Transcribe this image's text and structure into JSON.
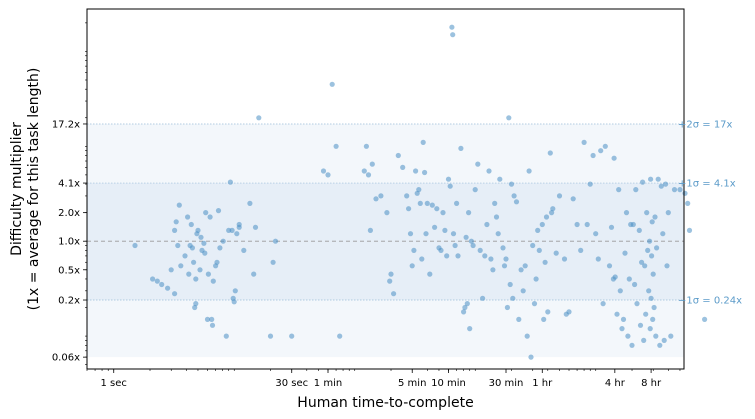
{
  "chart_data": {
    "type": "scatter",
    "title": "",
    "xlabel": "Human time-to-complete",
    "ylabel_line1": "Difficulty multiplier",
    "ylabel_line2": "(1x = average for this task length)",
    "x_scale": "log",
    "y_scale": "log",
    "xlim_seconds": [
      0.6,
      54000
    ],
    "ylim": [
      0.045,
      280
    ],
    "x_ticks": [
      {
        "label": "1 sec",
        "seconds": 1
      },
      {
        "label": "30 sec",
        "seconds": 30
      },
      {
        "label": "1 min",
        "seconds": 60
      },
      {
        "label": "5 min",
        "seconds": 300
      },
      {
        "label": "10 min",
        "seconds": 600
      },
      {
        "label": "30 min",
        "seconds": 1800
      },
      {
        "label": "1 hr",
        "seconds": 3600
      },
      {
        "label": "4 hr",
        "seconds": 14400
      },
      {
        "label": "8 hr",
        "seconds": 28800
      }
    ],
    "y_ticks": [
      {
        "label": "0.06x",
        "value": 0.06
      },
      {
        "label": "0.2x",
        "value": 0.24
      },
      {
        "label": "0.5x",
        "value": 0.5
      },
      {
        "label": "1.0x",
        "value": 1.0
      },
      {
        "label": "2.0x",
        "value": 2.0
      },
      {
        "label": "4.1x",
        "value": 4.1
      },
      {
        "label": "17.2x",
        "value": 17.2
      }
    ],
    "bands": [
      {
        "from": 0.06,
        "to": 17.2,
        "color": "#f3f7fb"
      },
      {
        "from": 0.24,
        "to": 4.1,
        "color": "#e6eef7"
      }
    ],
    "reference_lines": [
      {
        "value": 17.2,
        "label": "+2σ = 17x"
      },
      {
        "value": 4.1,
        "label": "+1σ = 4.1x"
      },
      {
        "value": 1.0,
        "label": ""
      },
      {
        "value": 0.24,
        "label": "−1σ = 0.24x"
      }
    ],
    "point_color": "#4a90c4",
    "points": [
      [
        1.5,
        0.9
      ],
      [
        2.1,
        0.4
      ],
      [
        2.3,
        0.38
      ],
      [
        2.5,
        0.35
      ],
      [
        2.8,
        0.32
      ],
      [
        3.0,
        0.5
      ],
      [
        3.2,
        0.28
      ],
      [
        3.2,
        1.3
      ],
      [
        3.3,
        1.6
      ],
      [
        3.4,
        0.9
      ],
      [
        3.5,
        2.4
      ],
      [
        3.6,
        0.55
      ],
      [
        3.9,
        0.7
      ],
      [
        4.1,
        1.8
      ],
      [
        4.2,
        0.45
      ],
      [
        4.3,
        0.9
      ],
      [
        4.4,
        1.5
      ],
      [
        4.5,
        0.85
      ],
      [
        4.6,
        0.6
      ],
      [
        4.7,
        0.2
      ],
      [
        4.8,
        0.22
      ],
      [
        4.8,
        0.4
      ],
      [
        4.9,
        1.2
      ],
      [
        5.0,
        1.3
      ],
      [
        5.2,
        0.5
      ],
      [
        5.3,
        1.1
      ],
      [
        5.4,
        0.8
      ],
      [
        5.6,
        0.95
      ],
      [
        5.7,
        0.75
      ],
      [
        5.8,
        2.0
      ],
      [
        6.0,
        0.15
      ],
      [
        6.1,
        0.45
      ],
      [
        6.3,
        1.8
      ],
      [
        6.5,
        0.15
      ],
      [
        6.6,
        0.13
      ],
      [
        6.7,
        0.38
      ],
      [
        7.0,
        0.55
      ],
      [
        7.2,
        0.6
      ],
      [
        7.4,
        2.1
      ],
      [
        7.6,
        0.85
      ],
      [
        8.1,
        1.0
      ],
      [
        8.6,
        0.1
      ],
      [
        9.0,
        1.3
      ],
      [
        9.3,
        4.2
      ],
      [
        9.6,
        1.3
      ],
      [
        9.8,
        0.25
      ],
      [
        10.0,
        0.23
      ],
      [
        10.2,
        0.3
      ],
      [
        10.5,
        1.2
      ],
      [
        11.0,
        1.5
      ],
      [
        11.0,
        1.4
      ],
      [
        12.0,
        0.8
      ],
      [
        13.5,
        2.5
      ],
      [
        14.5,
        0.45
      ],
      [
        15.0,
        1.4
      ],
      [
        16.0,
        20.0
      ],
      [
        20.0,
        0.1
      ],
      [
        21.0,
        0.6
      ],
      [
        22.0,
        1.0
      ],
      [
        30.0,
        0.1
      ],
      [
        55.0,
        5.5
      ],
      [
        60.0,
        5.0
      ],
      [
        65.0,
        45.0
      ],
      [
        70.0,
        10.0
      ],
      [
        75.0,
        0.1
      ],
      [
        120.0,
        5.5
      ],
      [
        125.0,
        10.0
      ],
      [
        130.0,
        5.0
      ],
      [
        135.0,
        1.3
      ],
      [
        140.0,
        6.5
      ],
      [
        150.0,
        2.8
      ],
      [
        165.0,
        3.0
      ],
      [
        185.0,
        2.0
      ],
      [
        195.0,
        0.38
      ],
      [
        200.0,
        0.45
      ],
      [
        210.0,
        0.28
      ],
      [
        230.0,
        8.0
      ],
      [
        250.0,
        6.0
      ],
      [
        270.0,
        3.0
      ],
      [
        280.0,
        2.2
      ],
      [
        290.0,
        1.2
      ],
      [
        300.0,
        0.55
      ],
      [
        310.0,
        0.8
      ],
      [
        320.0,
        5.5
      ],
      [
        330.0,
        3.2
      ],
      [
        340.0,
        3.5
      ],
      [
        350.0,
        2.5
      ],
      [
        360.0,
        0.65
      ],
      [
        370.0,
        11.0
      ],
      [
        380.0,
        5.3
      ],
      [
        390.0,
        1.2
      ],
      [
        400.0,
        2.5
      ],
      [
        420.0,
        0.45
      ],
      [
        440.0,
        2.4
      ],
      [
        460.0,
        1.4
      ],
      [
        480.0,
        2.2
      ],
      [
        500.0,
        0.85
      ],
      [
        520.0,
        0.8
      ],
      [
        540.0,
        2.0
      ],
      [
        560.0,
        1.3
      ],
      [
        580.0,
        0.7
      ],
      [
        600.0,
        4.5
      ],
      [
        620.0,
        3.8
      ],
      [
        640.0,
        180.0
      ],
      [
        650.0,
        150.0
      ],
      [
        660.0,
        1.2
      ],
      [
        680.0,
        0.9
      ],
      [
        700.0,
        2.5
      ],
      [
        720.0,
        0.7
      ],
      [
        760.0,
        9.5
      ],
      [
        800.0,
        0.18
      ],
      [
        820.0,
        0.2
      ],
      [
        840.0,
        1.1
      ],
      [
        860.0,
        0.22
      ],
      [
        880.0,
        2.0
      ],
      [
        900.0,
        0.12
      ],
      [
        930.0,
        1.0
      ],
      [
        960.0,
        0.9
      ],
      [
        1000.0,
        3.5
      ],
      [
        1050.0,
        6.5
      ],
      [
        1100.0,
        0.8
      ],
      [
        1150.0,
        0.25
      ],
      [
        1200.0,
        0.7
      ],
      [
        1250.0,
        1.5
      ],
      [
        1300.0,
        5.5
      ],
      [
        1350.0,
        0.65
      ],
      [
        1400.0,
        0.5
      ],
      [
        1450.0,
        2.5
      ],
      [
        1500.0,
        1.8
      ],
      [
        1550.0,
        1.2
      ],
      [
        1600.0,
        4.5
      ],
      [
        1700.0,
        0.85
      ],
      [
        1750.0,
        0.55
      ],
      [
        1800.0,
        0.65
      ],
      [
        1850.0,
        0.2
      ],
      [
        1900.0,
        20.0
      ],
      [
        1950.0,
        0.35
      ],
      [
        2000.0,
        4.0
      ],
      [
        2050.0,
        0.25
      ],
      [
        2100.0,
        3.0
      ],
      [
        2200.0,
        2.6
      ],
      [
        2300.0,
        0.15
      ],
      [
        2400.0,
        0.5
      ],
      [
        2500.0,
        0.3
      ],
      [
        2600.0,
        0.55
      ],
      [
        2700.0,
        0.1
      ],
      [
        2800.0,
        5.5
      ],
      [
        2900.0,
        0.06
      ],
      [
        3000.0,
        0.9
      ],
      [
        3100.0,
        0.22
      ],
      [
        3200.0,
        0.4
      ],
      [
        3300.0,
        1.3
      ],
      [
        3400.0,
        0.8
      ],
      [
        3600.0,
        1.5
      ],
      [
        3700.0,
        0.15
      ],
      [
        3800.0,
        0.6
      ],
      [
        3900.0,
        1.8
      ],
      [
        4000.0,
        0.18
      ],
      [
        4200.0,
        8.5
      ],
      [
        4300.0,
        2.0
      ],
      [
        4400.0,
        2.2
      ],
      [
        4700.0,
        0.75
      ],
      [
        5000.0,
        3.0
      ],
      [
        5500.0,
        0.65
      ],
      [
        5700.0,
        0.17
      ],
      [
        6000.0,
        0.18
      ],
      [
        6500.0,
        2.8
      ],
      [
        7000.0,
        1.5
      ],
      [
        7500.0,
        0.8
      ],
      [
        8000.0,
        11.0
      ],
      [
        8500.0,
        1.5
      ],
      [
        9000.0,
        4.0
      ],
      [
        9500.0,
        8.0
      ],
      [
        10000.0,
        1.2
      ],
      [
        10500.0,
        0.65
      ],
      [
        11000.0,
        9.0
      ],
      [
        11500.0,
        0.22
      ],
      [
        12000.0,
        10.0
      ],
      [
        13000.0,
        0.55
      ],
      [
        13500.0,
        1.4
      ],
      [
        14000.0,
        0.4
      ],
      [
        14200.0,
        7.5
      ],
      [
        14500.0,
        0.42
      ],
      [
        15000.0,
        0.17
      ],
      [
        15500.0,
        3.5
      ],
      [
        16000.0,
        0.3
      ],
      [
        16500.0,
        0.12
      ],
      [
        17000.0,
        0.15
      ],
      [
        17500.0,
        0.75
      ],
      [
        18000.0,
        2.0
      ],
      [
        18500.0,
        0.1
      ],
      [
        19000.0,
        0.4
      ],
      [
        19500.0,
        1.5
      ],
      [
        20000.0,
        0.08
      ],
      [
        20500.0,
        1.5
      ],
      [
        21000.0,
        0.35
      ],
      [
        21500.0,
        3.5
      ],
      [
        22000.0,
        0.22
      ],
      [
        23000.0,
        1.3
      ],
      [
        23500.0,
        0.13
      ],
      [
        24000.0,
        0.6
      ],
      [
        24500.0,
        4.2
      ],
      [
        25000.0,
        0.09
      ],
      [
        25500.0,
        0.55
      ],
      [
        26000.0,
        0.17
      ],
      [
        26500.0,
        2.0
      ],
      [
        27000.0,
        0.8
      ],
      [
        27500.0,
        0.3
      ],
      [
        28000.0,
        1.0
      ],
      [
        28300.0,
        0.12
      ],
      [
        28500.0,
        4.5
      ],
      [
        28800.0,
        0.25
      ],
      [
        29100.0,
        0.7
      ],
      [
        29400.0,
        1.6
      ],
      [
        29700.0,
        0.15
      ],
      [
        30000.0,
        0.45
      ],
      [
        30500.0,
        0.2
      ],
      [
        31000.0,
        1.8
      ],
      [
        31500.0,
        0.1
      ],
      [
        32000.0,
        0.85
      ],
      [
        33000.0,
        4.5
      ],
      [
        34000.0,
        0.08
      ],
      [
        35000.0,
        3.8
      ],
      [
        36000.0,
        1.2
      ],
      [
        37000.0,
        0.09
      ],
      [
        38000.0,
        4.0
      ],
      [
        39000.0,
        0.55
      ],
      [
        40000.0,
        2.0
      ],
      [
        42000.0,
        0.1
      ],
      [
        45000.0,
        3.5
      ],
      [
        50000.0,
        3.5
      ],
      [
        55000.0,
        3.2
      ],
      [
        58000.0,
        2.5
      ],
      [
        60000.0,
        1.3
      ],
      [
        80000.0,
        0.15
      ]
    ]
  }
}
